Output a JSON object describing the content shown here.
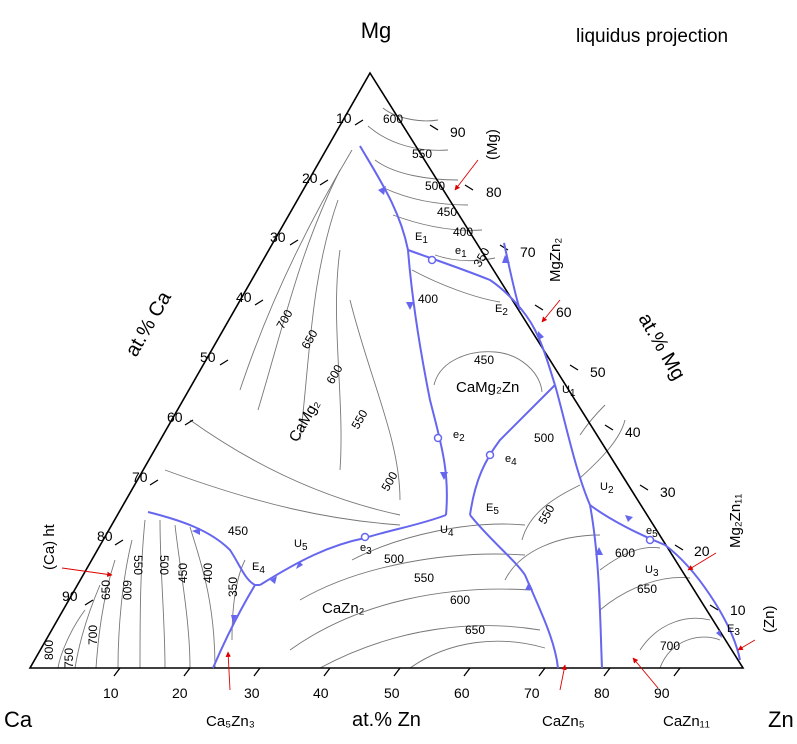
{
  "title": "liquidus projection",
  "corners": {
    "top": "Mg",
    "left": "Ca",
    "right": "Zn"
  },
  "axes": {
    "left": "at.% Ca",
    "right": "at.% Mg",
    "bottom": "at.% Zn"
  },
  "ticks": {
    "left": [
      "10",
      "20",
      "30",
      "40",
      "50",
      "60",
      "70",
      "80",
      "90"
    ],
    "right": [
      "90",
      "80",
      "70",
      "60",
      "50",
      "40",
      "30",
      "20",
      "10"
    ],
    "bottom": [
      "10",
      "20",
      "30",
      "40",
      "50",
      "60",
      "70",
      "80",
      "90"
    ]
  },
  "phases": {
    "camg2": "CaMg₂",
    "camg2zn": "CaMg₂Zn",
    "cazn2": "CaZn₂",
    "mg": "(Mg)",
    "mgzn2": "MgZn₂",
    "mg2zn11": "Mg₂Zn₁₁",
    "zn": "(Zn)",
    "ca_ht": "(Ca) ht",
    "ca5zn3": "Ca₅Zn₃",
    "cazn5": "CaZn₅",
    "cazn11": "CaZn₁₁"
  },
  "points": {
    "E1": {
      "main": "E",
      "sub": "1"
    },
    "E2": {
      "main": "E",
      "sub": "2"
    },
    "E3": {
      "main": "E",
      "sub": "3"
    },
    "E4": {
      "main": "E",
      "sub": "4"
    },
    "E5": {
      "main": "E",
      "sub": "5"
    },
    "e1": {
      "main": "e",
      "sub": "1"
    },
    "e2": {
      "main": "e",
      "sub": "2"
    },
    "e3": {
      "main": "e",
      "sub": "3"
    },
    "e4": {
      "main": "e",
      "sub": "4"
    },
    "e5": {
      "main": "e",
      "sub": "5"
    },
    "U1": {
      "main": "U",
      "sub": "1"
    },
    "U2": {
      "main": "U",
      "sub": "2"
    },
    "U3": {
      "main": "U",
      "sub": "3"
    },
    "U4": {
      "main": "U",
      "sub": "4"
    },
    "U5": {
      "main": "U",
      "sub": "5"
    }
  },
  "isotherms": {
    "t600a": "600",
    "t550a": "550",
    "t500a": "500",
    "t450a": "450",
    "t400a": "400",
    "t350a": "350",
    "t400b": "400",
    "t450b": "450",
    "t700c": "700",
    "t650c": "650",
    "t600c": "600",
    "t550c": "550",
    "t500c": "500",
    "t450d": "450",
    "t500e": "500",
    "t550e": "550",
    "t600e": "600",
    "t650e": "650",
    "t500f": "500",
    "t550f": "550",
    "t600f": "600",
    "t650f": "650",
    "t700f": "700",
    "t450g": "450",
    "t400g": "400",
    "t350g": "350",
    "t500h": "500",
    "t550h": "550",
    "t600h": "600",
    "t650h": "650",
    "t700h": "700",
    "t750h": "750",
    "t800h": "800"
  },
  "colors": {
    "boundary": "#6666ee",
    "isotherm": "#777777",
    "arrow": "#dd0000",
    "frame": "#000000"
  }
}
